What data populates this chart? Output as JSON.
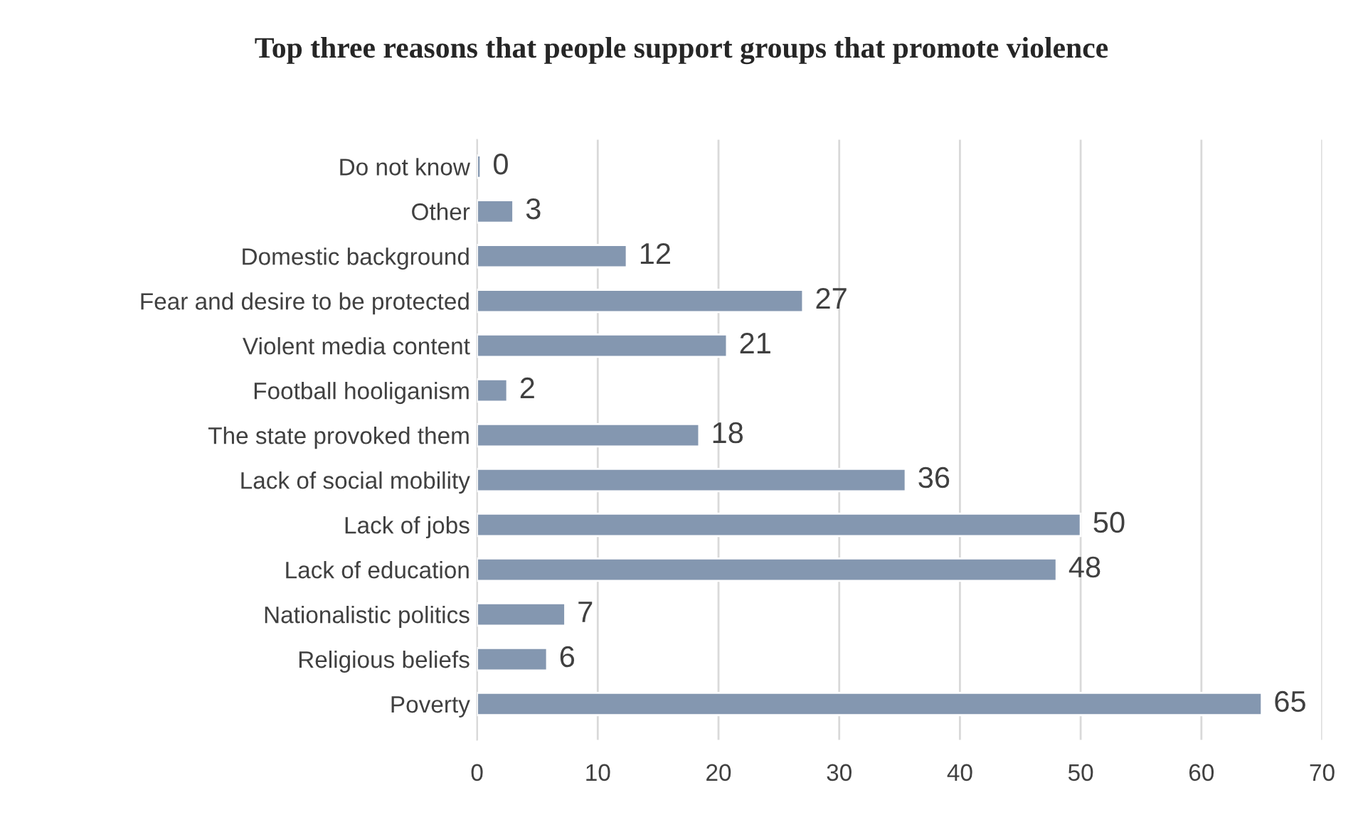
{
  "chart_data": {
    "type": "bar",
    "orientation": "horizontal",
    "title": "Top three reasons that people support groups that promote violence",
    "categories": [
      "Do not know",
      "Other",
      "Domestic background",
      "Fear and desire to be protected",
      "Violent media content",
      "Football hooliganism",
      "The state provoked them",
      "Lack of social mobility",
      "Lack of jobs",
      "Lack of education",
      "Nationalistic politics",
      "Religious beliefs",
      "Poverty"
    ],
    "values": [
      0.3,
      3,
      12.4,
      27,
      20.7,
      2.5,
      18.4,
      35.5,
      50,
      48,
      7.3,
      5.8,
      65
    ],
    "value_labels": [
      "0",
      "3",
      "12",
      "27",
      "21",
      "2",
      "18",
      "36",
      "50",
      "48",
      "7",
      "6",
      "65"
    ],
    "color": "#8497b0",
    "xlim": [
      0,
      70
    ],
    "xticks": [
      0,
      10,
      20,
      30,
      40,
      50,
      60,
      70
    ],
    "grid": "x",
    "legend": false
  }
}
